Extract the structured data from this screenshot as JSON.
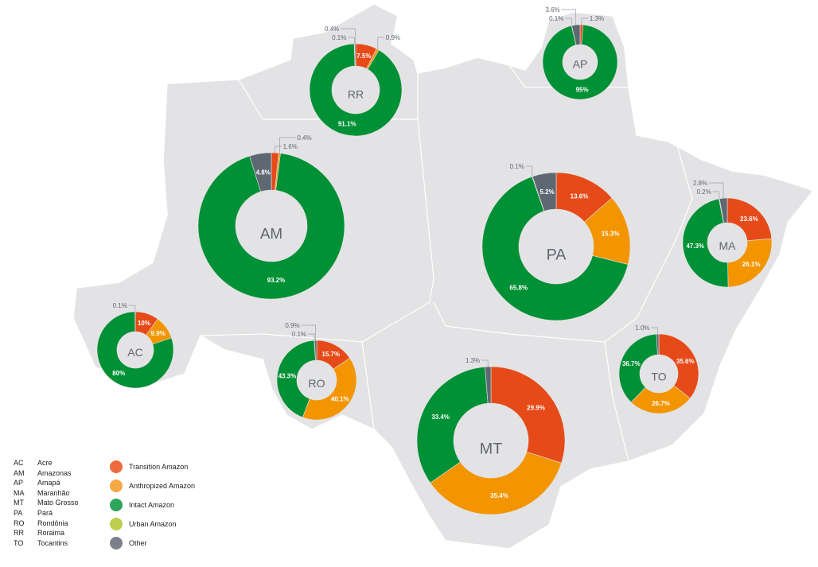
{
  "colors": {
    "map_fill": "#e3e3e5",
    "map_border": "#ffffff",
    "label_gray": "#5f6670",
    "Transition Amazon": "#e64a19",
    "Anthropized Amazon": "#f29500",
    "Intact Amazon": "#009035",
    "Urban Amazon": "#b5cc3a",
    "Other": "#5e6873"
  },
  "legend": {
    "states": [
      {
        "code": "AC",
        "name": "Acre"
      },
      {
        "code": "AM",
        "name": "Amazonas"
      },
      {
        "code": "AP",
        "name": "Amapá"
      },
      {
        "code": "MA",
        "name": "Maranhão"
      },
      {
        "code": "MT",
        "name": "Mato Grosso"
      },
      {
        "code": "PA",
        "name": "Pará"
      },
      {
        "code": "RO",
        "name": "Rondônia"
      },
      {
        "code": "RR",
        "name": "Roraima"
      },
      {
        "code": "TO",
        "name": "Tocantins"
      }
    ],
    "categories": [
      {
        "label": "Transition Amazon",
        "color": "#ee6a3b"
      },
      {
        "label": "Anthropized Amazon",
        "color": "#f5a843"
      },
      {
        "label": "Intact Amazon",
        "color": "#2da55a"
      },
      {
        "label": "Urban Amazon",
        "color": "#bdd04e"
      },
      {
        "label": "Other",
        "color": "#7a818a"
      }
    ]
  },
  "chart_data": {
    "type": "donut-map",
    "categories": [
      "Transition Amazon",
      "Anthropized Amazon",
      "Intact Amazon",
      "Urban Amazon",
      "Other"
    ],
    "states": [
      {
        "code": "RR",
        "labels": [
          "7.5%",
          "0.9%",
          "91.1%",
          "0.1%",
          "0.4%"
        ],
        "values": [
          7.5,
          0.9,
          91.1,
          0.1,
          0.4
        ]
      },
      {
        "code": "AP",
        "labels": [
          "1.3%",
          null,
          "95%",
          "0.1%",
          "3.6%"
        ],
        "values": [
          1.3,
          0,
          95,
          0.1,
          3.6
        ]
      },
      {
        "code": "AM",
        "labels": [
          "1.6%",
          "0.4%",
          "93.2%",
          null,
          "4.8%"
        ],
        "values": [
          1.6,
          0.4,
          93.2,
          0,
          4.8
        ]
      },
      {
        "code": "PA",
        "labels": [
          "13.6%",
          "15.3%",
          "65.8%",
          "0.1%",
          "5.2%"
        ],
        "values": [
          13.6,
          15.3,
          65.8,
          0.1,
          5.2
        ]
      },
      {
        "code": "MA",
        "labels": [
          "23.6%",
          "26.1%",
          "47.3%",
          "0.2%",
          "2.8%"
        ],
        "values": [
          23.6,
          26.1,
          47.3,
          0.2,
          2.8
        ]
      },
      {
        "code": "AC",
        "labels": [
          "10%",
          "9.9%",
          "80%",
          "0.1%",
          null
        ],
        "values": [
          10,
          9.9,
          80,
          0.1,
          0
        ]
      },
      {
        "code": "RO",
        "labels": [
          "15.7%",
          "40.1%",
          "43.3%",
          "0.1%",
          "0.9%"
        ],
        "values": [
          15.7,
          40.1,
          43.3,
          0.1,
          0.9
        ]
      },
      {
        "code": "TO",
        "labels": [
          "35.6%",
          "26.7%",
          "36.7%",
          null,
          "1.0%"
        ],
        "values": [
          35.6,
          26.7,
          36.7,
          0,
          1.0
        ]
      },
      {
        "code": "MT",
        "labels": [
          "29.9%",
          "35.4%",
          "33.4%",
          null,
          "1.3%"
        ],
        "values": [
          29.9,
          35.4,
          33.4,
          0,
          1.3
        ]
      }
    ]
  }
}
